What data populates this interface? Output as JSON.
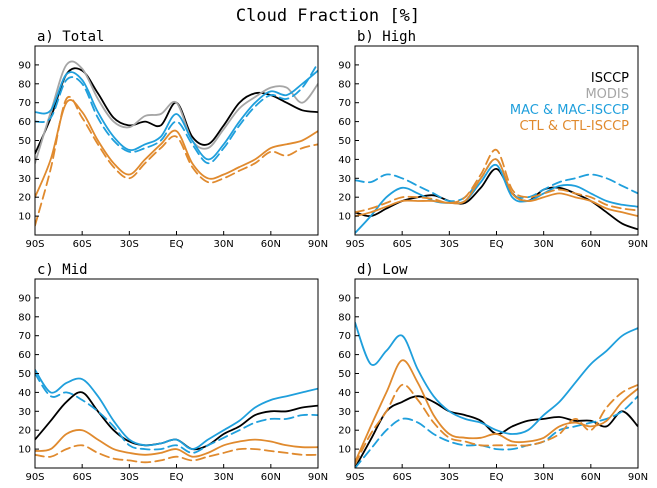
{
  "title": "Cloud Fraction [%]",
  "colors": {
    "ISCCP": "#000000",
    "MODIS": "#a6a6a6",
    "MAC": "#1f9fdc",
    "CTL": "#e08a2e"
  },
  "legend": [
    {
      "label": "ISCCP",
      "color": "#000000"
    },
    {
      "label": "MODIS",
      "color": "#a6a6a6"
    },
    {
      "label": "MAC & MAC-ISCCP",
      "color": "#1f9fdc"
    },
    {
      "label": "CTL & CTL-ISCCP",
      "color": "#e08a2e"
    }
  ],
  "chart_data": [
    {
      "type": "line",
      "title": "a) Total",
      "xticks": [
        "90S",
        "60S",
        "30S",
        "EQ",
        "30N",
        "60N",
        "90N"
      ],
      "yticks": [
        10,
        20,
        30,
        40,
        50,
        60,
        70,
        80,
        90
      ],
      "xlim": [
        -90,
        90
      ],
      "ylim": [
        0,
        100
      ],
      "x": [
        -90,
        -80,
        -70,
        -60,
        -50,
        -40,
        -30,
        -20,
        -10,
        0,
        10,
        20,
        30,
        40,
        50,
        60,
        70,
        80,
        90
      ],
      "series": [
        {
          "color": "#000000",
          "dash": false,
          "values": [
            43,
            62,
            85,
            87,
            75,
            62,
            58,
            60,
            58,
            70,
            52,
            48,
            58,
            70,
            75,
            74,
            70,
            66,
            65
          ]
        },
        {
          "color": "#a6a6a6",
          "dash": false,
          "values": [
            38,
            65,
            90,
            88,
            72,
            60,
            57,
            63,
            64,
            70,
            50,
            46,
            56,
            67,
            73,
            78,
            78,
            70,
            80
          ]
        },
        {
          "color": "#1f9fdc",
          "dash": false,
          "values": [
            65,
            66,
            85,
            82,
            65,
            52,
            45,
            48,
            52,
            64,
            50,
            40,
            48,
            60,
            70,
            76,
            74,
            80,
            87
          ]
        },
        {
          "color": "#1f9fdc",
          "dash": true,
          "values": [
            60,
            62,
            82,
            80,
            62,
            50,
            44,
            46,
            50,
            60,
            48,
            38,
            46,
            58,
            68,
            74,
            72,
            78,
            91
          ]
        },
        {
          "color": "#e08a2e",
          "dash": false,
          "values": [
            20,
            40,
            70,
            65,
            50,
            38,
            32,
            40,
            48,
            55,
            38,
            30,
            32,
            36,
            40,
            46,
            48,
            50,
            55
          ]
        },
        {
          "color": "#e08a2e",
          "dash": true,
          "values": [
            5,
            35,
            72,
            62,
            48,
            36,
            30,
            38,
            46,
            52,
            36,
            28,
            30,
            34,
            38,
            44,
            42,
            46,
            48
          ]
        }
      ]
    },
    {
      "type": "line",
      "title": "b) High",
      "xticks": [
        "90S",
        "60S",
        "30S",
        "EQ",
        "30N",
        "60N",
        "90N"
      ],
      "yticks": [
        10,
        20,
        30,
        40,
        50,
        60,
        70,
        80,
        90
      ],
      "xlim": [
        -90,
        90
      ],
      "ylim": [
        0,
        100
      ],
      "x": [
        -90,
        -80,
        -70,
        -60,
        -50,
        -40,
        -30,
        -20,
        -10,
        0,
        10,
        20,
        30,
        40,
        50,
        60,
        70,
        80,
        90
      ],
      "series": [
        {
          "color": "#000000",
          "dash": false,
          "values": [
            12,
            10,
            14,
            18,
            20,
            21,
            18,
            17,
            25,
            35,
            22,
            18,
            24,
            25,
            22,
            18,
            12,
            6,
            3
          ]
        },
        {
          "color": "#1f9fdc",
          "dash": false,
          "values": [
            1,
            10,
            20,
            25,
            22,
            18,
            17,
            18,
            28,
            37,
            20,
            18,
            22,
            26,
            26,
            22,
            18,
            16,
            15
          ]
        },
        {
          "color": "#1f9fdc",
          "dash": true,
          "values": [
            29,
            28,
            32,
            30,
            26,
            22,
            18,
            20,
            30,
            40,
            22,
            20,
            24,
            28,
            30,
            32,
            30,
            26,
            22
          ]
        },
        {
          "color": "#e08a2e",
          "dash": false,
          "values": [
            10,
            12,
            15,
            18,
            18,
            18,
            17,
            18,
            30,
            40,
            22,
            18,
            20,
            22,
            20,
            18,
            14,
            12,
            10
          ]
        },
        {
          "color": "#e08a2e",
          "dash": true,
          "values": [
            12,
            14,
            17,
            20,
            20,
            19,
            17,
            20,
            32,
            45,
            24,
            20,
            22,
            24,
            22,
            20,
            16,
            14,
            13
          ]
        }
      ]
    },
    {
      "type": "line",
      "title": "c) Mid",
      "xticks": [
        "90S",
        "60S",
        "30S",
        "EQ",
        "30N",
        "60N",
        "90N"
      ],
      "yticks": [
        10,
        20,
        30,
        40,
        50,
        60,
        70,
        80,
        90
      ],
      "xlim": [
        -90,
        90
      ],
      "ylim": [
        0,
        100
      ],
      "x": [
        -90,
        -80,
        -70,
        -60,
        -50,
        -40,
        -30,
        -20,
        -10,
        0,
        10,
        20,
        30,
        40,
        50,
        60,
        70,
        80,
        90
      ],
      "series": [
        {
          "color": "#000000",
          "dash": false,
          "values": [
            15,
            25,
            35,
            40,
            30,
            20,
            14,
            12,
            13,
            15,
            10,
            12,
            18,
            22,
            28,
            30,
            30,
            32,
            33
          ]
        },
        {
          "color": "#1f9fdc",
          "dash": false,
          "values": [
            52,
            40,
            45,
            47,
            38,
            25,
            15,
            12,
            13,
            15,
            10,
            15,
            20,
            25,
            32,
            36,
            38,
            40,
            42
          ]
        },
        {
          "color": "#1f9fdc",
          "dash": true,
          "values": [
            50,
            38,
            40,
            36,
            30,
            22,
            12,
            10,
            10,
            12,
            8,
            12,
            16,
            20,
            24,
            26,
            26,
            28,
            28
          ]
        },
        {
          "color": "#e08a2e",
          "dash": false,
          "values": [
            9,
            10,
            18,
            20,
            15,
            10,
            8,
            7,
            8,
            10,
            6,
            8,
            12,
            14,
            15,
            14,
            12,
            11,
            11
          ]
        },
        {
          "color": "#e08a2e",
          "dash": true,
          "values": [
            7,
            6,
            10,
            12,
            8,
            5,
            4,
            3,
            4,
            6,
            4,
            6,
            8,
            10,
            10,
            9,
            8,
            7,
            7
          ]
        }
      ]
    },
    {
      "type": "line",
      "title": "d) Low",
      "xticks": [
        "90S",
        "60S",
        "30S",
        "EQ",
        "30N",
        "60N",
        "90N"
      ],
      "yticks": [
        10,
        20,
        30,
        40,
        50,
        60,
        70,
        80,
        90
      ],
      "xlim": [
        -90,
        90
      ],
      "ylim": [
        0,
        100
      ],
      "x": [
        -90,
        -80,
        -70,
        -60,
        -50,
        -40,
        -30,
        -20,
        -10,
        0,
        10,
        20,
        30,
        40,
        50,
        60,
        70,
        80,
        90
      ],
      "series": [
        {
          "color": "#000000",
          "dash": false,
          "values": [
            0,
            15,
            30,
            35,
            38,
            35,
            30,
            28,
            25,
            18,
            22,
            25,
            26,
            27,
            25,
            25,
            22,
            30,
            22
          ]
        },
        {
          "color": "#1f9fdc",
          "dash": false,
          "values": [
            77,
            55,
            62,
            70,
            52,
            38,
            30,
            26,
            24,
            20,
            18,
            20,
            28,
            35,
            45,
            55,
            62,
            70,
            74
          ]
        },
        {
          "color": "#1f9fdc",
          "dash": true,
          "values": [
            0,
            10,
            20,
            26,
            24,
            18,
            14,
            12,
            12,
            10,
            10,
            12,
            14,
            20,
            22,
            24,
            26,
            30,
            38
          ]
        },
        {
          "color": "#e08a2e",
          "dash": false,
          "values": [
            3,
            22,
            40,
            57,
            45,
            28,
            18,
            16,
            16,
            18,
            14,
            14,
            16,
            22,
            24,
            22,
            25,
            35,
            42
          ]
        },
        {
          "color": "#e08a2e",
          "dash": true,
          "values": [
            2,
            18,
            30,
            44,
            36,
            24,
            16,
            14,
            12,
            12,
            12,
            12,
            14,
            18,
            26,
            20,
            32,
            40,
            44
          ]
        }
      ]
    }
  ]
}
